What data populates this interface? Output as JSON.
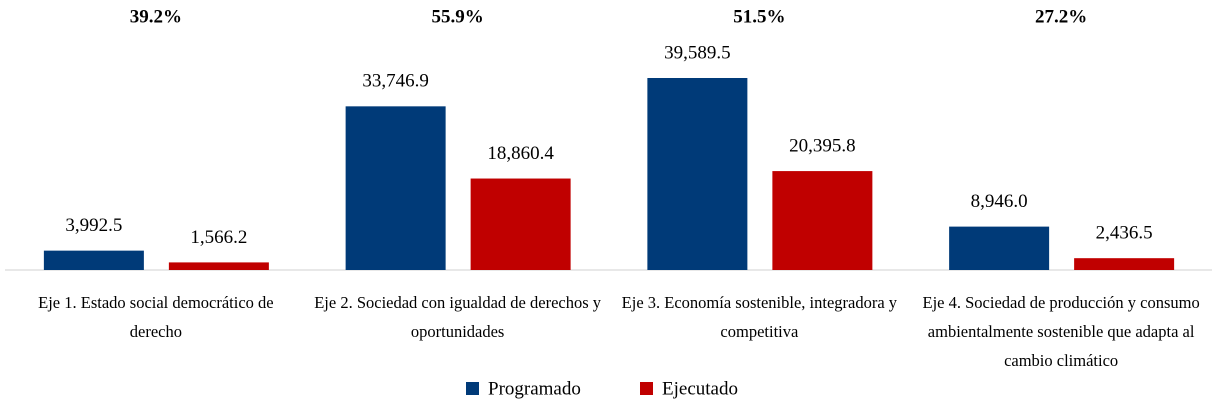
{
  "chart_data": {
    "type": "bar",
    "annotations": [
      "39.2%",
      "55.9%",
      "51.5%",
      "27.2%"
    ],
    "categories": [
      "Eje 1. Estado social democrático de derecho",
      "Eje 2. Sociedad con igualdad de derechos y oportunidades",
      "Eje 3. Economía sostenible, integradora y competitiva",
      "Eje 4. Sociedad de producción y consumo ambientalmente sostenible que adapta al cambio climático"
    ],
    "series": [
      {
        "name": "Programado",
        "color": "#003a78",
        "values": [
          3992.5,
          33746.9,
          39589.5,
          8946.0
        ],
        "value_labels": [
          "3,992.5",
          "33,746.9",
          "39,589.5",
          "8,946.0"
        ]
      },
      {
        "name": "Ejecutado",
        "color": "#c00000",
        "values": [
          1566.2,
          18860.4,
          20395.8,
          2436.5
        ],
        "value_labels": [
          "1,566.2",
          "18,860.4",
          "20,395.8",
          "2,436.5"
        ]
      }
    ],
    "legend": "bottom"
  }
}
